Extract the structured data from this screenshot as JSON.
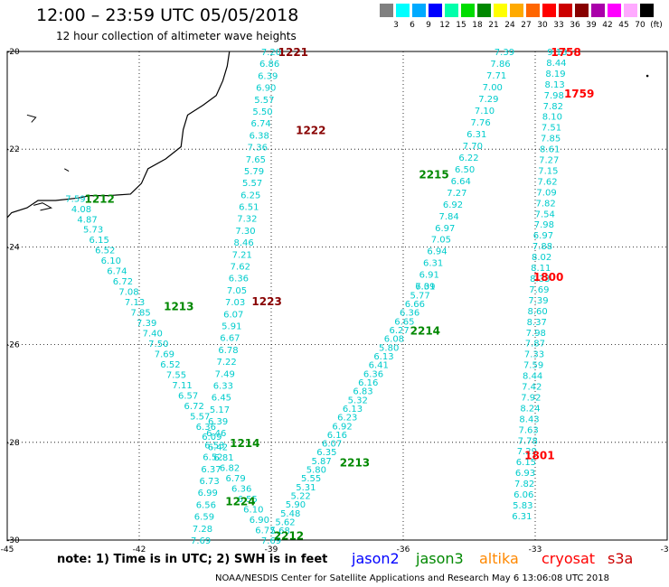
{
  "header": {
    "title": "12:00 – 23:59 UTC 05/05/2018",
    "subtitle": "12 hour collection of altimeter wave heights"
  },
  "legend": {
    "colors": [
      "#808080",
      "#00ffff",
      "#00aaff",
      "#0000ff",
      "#00ffaa",
      "#00dd00",
      "#008800",
      "#ffff00",
      "#ffaa00",
      "#ff6600",
      "#ff0000",
      "#cc0000",
      "#880000",
      "#aa00aa",
      "#ff00ff",
      "#ffaaff",
      "#000000"
    ],
    "labels": [
      "3",
      "6",
      "9",
      "12",
      "15",
      "18",
      "21",
      "24",
      "27",
      "30",
      "33",
      "36",
      "39",
      "42",
      "45",
      "70",
      "(ft)"
    ]
  },
  "axes": {
    "lon_labels": [
      "-45",
      "-42",
      "-39",
      "-36",
      "-33",
      "-30"
    ],
    "lat_labels": [
      "-20",
      "-22",
      "-24",
      "-26",
      "-28",
      "-30"
    ]
  },
  "colors": {
    "swh_text": "#00cccc",
    "jason2": "#0000ff",
    "jason3": "#008800",
    "altika": "#ff8800",
    "cryosat": "#ff0000",
    "s3a": "#cc0000",
    "time_dark": "#880000"
  },
  "chart_data": {
    "type": "map",
    "tracks": [
      {
        "satellite": "jason3",
        "x_start": -43.45,
        "y_start": -23.0,
        "x_end": -39.0,
        "y_end": -30.0,
        "values": [
          "7.59",
          "4.08",
          "4.87",
          "5.73",
          "6.15",
          "6.52",
          "6.10",
          "6.74",
          "6.72",
          "7.08",
          "7.13",
          "7.85",
          "7.39",
          "7.40",
          "7.50",
          "7.69",
          "6.52",
          "7.55",
          "7.11",
          "6.57",
          "6.72",
          "5.57",
          "6.36",
          "6.09",
          "6.42",
          "6.81",
          "6.82",
          "6.79",
          "6.36",
          "6.55",
          "6.10",
          "6.90",
          "6.77",
          "7.69"
        ],
        "time_labels": [
          {
            "text": "1212",
            "lon": -42.9,
            "lat": -23.0
          },
          {
            "text": "1213",
            "lon": -41.1,
            "lat": -25.2
          }
        ]
      },
      {
        "satellite": "jason3",
        "x_start": -39.0,
        "y_start": -20.0,
        "x_end": -40.6,
        "y_end": -30.0,
        "values": [
          "7.20",
          "6.86",
          "6.39",
          "6.90",
          "5.57",
          "5.50",
          "6.74",
          "6.38",
          "7.36",
          "7.65",
          "5.79",
          "5.57",
          "6.25",
          "6.51",
          "7.32",
          "7.30",
          "8.46",
          "7.21",
          "7.62",
          "6.36",
          "7.05",
          "7.03",
          "6.07",
          "5.91",
          "6.67",
          "6.78",
          "7.22",
          "7.49",
          "6.33",
          "6.45",
          "5.17",
          "6.39",
          "6.46",
          "6.53",
          "6.52",
          "6.37",
          "6.73",
          "6.99",
          "6.56",
          "6.59",
          "7.28",
          "7.69"
        ],
        "time_labels": [
          {
            "text": "1214",
            "lon": -39.6,
            "lat": -28.0
          },
          {
            "text": "1224",
            "lon": -39.7,
            "lat": -29.2
          }
        ]
      },
      {
        "satellite": "jason3",
        "x_start": -38.8,
        "y_start": -29.8,
        "x_end": -35.5,
        "y_end": -24.8,
        "values": [
          "5.68",
          "5.62",
          "5.48",
          "5.90",
          "5.22",
          "5.31",
          "5.55",
          "5.80",
          "5.87",
          "6.35",
          "6.07",
          "6.16",
          "6.92",
          "6.23",
          "6.13",
          "5.32",
          "6.83",
          "6.16",
          "6.36",
          "6.41",
          "6.13",
          "5.80",
          "6.08",
          "6.27",
          "6.65",
          "6.36",
          "6.66",
          "5.77",
          "6.31"
        ],
        "time_labels": [
          {
            "text": "2213",
            "lon": -37.1,
            "lat": -28.4
          },
          {
            "text": "2214",
            "lon": -35.5,
            "lat": -25.7
          },
          {
            "text": "2212",
            "lon": -38.6,
            "lat": -29.9
          }
        ]
      },
      {
        "satellite": "jason3",
        "x_start": -35.5,
        "y_start": -24.8,
        "x_end": -33.7,
        "y_end": -20.0,
        "values": [
          "7.09",
          "6.91",
          "6.31",
          "6.94",
          "7.05",
          "6.97",
          "7.84",
          "6.92",
          "7.27",
          "6.64",
          "6.50",
          "6.22",
          "7.70",
          "6.31",
          "7.76",
          "7.10",
          "7.29",
          "7.00",
          "7.71",
          "7.86",
          "7.39"
        ],
        "time_labels": [
          {
            "text": "2215",
            "lon": -35.3,
            "lat": -22.5
          }
        ]
      },
      {
        "satellite": "cryosat",
        "x_start": -32.5,
        "y_start": -20.0,
        "x_end": -33.3,
        "y_end": -29.5,
        "values": [
          "9.13",
          "8.44",
          "8.19",
          "8.13",
          "7.98",
          "7.82",
          "8.10",
          "7.51",
          "7.85",
          "8.61",
          "7.27",
          "7.15",
          "7.62",
          "7.09",
          "7.82",
          "7.54",
          "7.98",
          "6.97",
          "7.88",
          "8.02",
          "8.11",
          "8.33",
          "7.69",
          "7.39",
          "8.60",
          "8.37",
          "7.98",
          "7.87",
          "7.33",
          "7.59",
          "8.44",
          "7.42",
          "7.92",
          "8.24",
          "8.43",
          "7.63",
          "7.78",
          "7.29",
          "6.15",
          "6.93",
          "7.82",
          "6.06",
          "5.83",
          "6.31"
        ],
        "time_labels": [
          {
            "text": "1758",
            "lon": -32.3,
            "lat": -20.0
          },
          {
            "text": "1759",
            "lon": -32.0,
            "lat": -20.85
          },
          {
            "text": "1800",
            "lon": -32.7,
            "lat": -24.6
          },
          {
            "text": "1801",
            "lon": -32.9,
            "lat": -28.25
          }
        ]
      },
      {
        "satellite": "s3a",
        "time_labels": [
          {
            "text": "1221",
            "lon": -38.5,
            "lat": -20.0
          },
          {
            "text": "1222",
            "lon": -38.1,
            "lat": -21.6
          },
          {
            "text": "1223",
            "lon": -39.1,
            "lat": -25.1
          }
        ]
      }
    ]
  },
  "footer": {
    "note": "note:  1) Time is in UTC;  2) SWH is in feet",
    "satellites": [
      "jason2",
      "jason3",
      "altika",
      "cryosat",
      "s3a"
    ],
    "credit": "NOAA/NESDIS Center for Satellite Applications and Research    May  6 13:06:08 UTC 2018"
  }
}
